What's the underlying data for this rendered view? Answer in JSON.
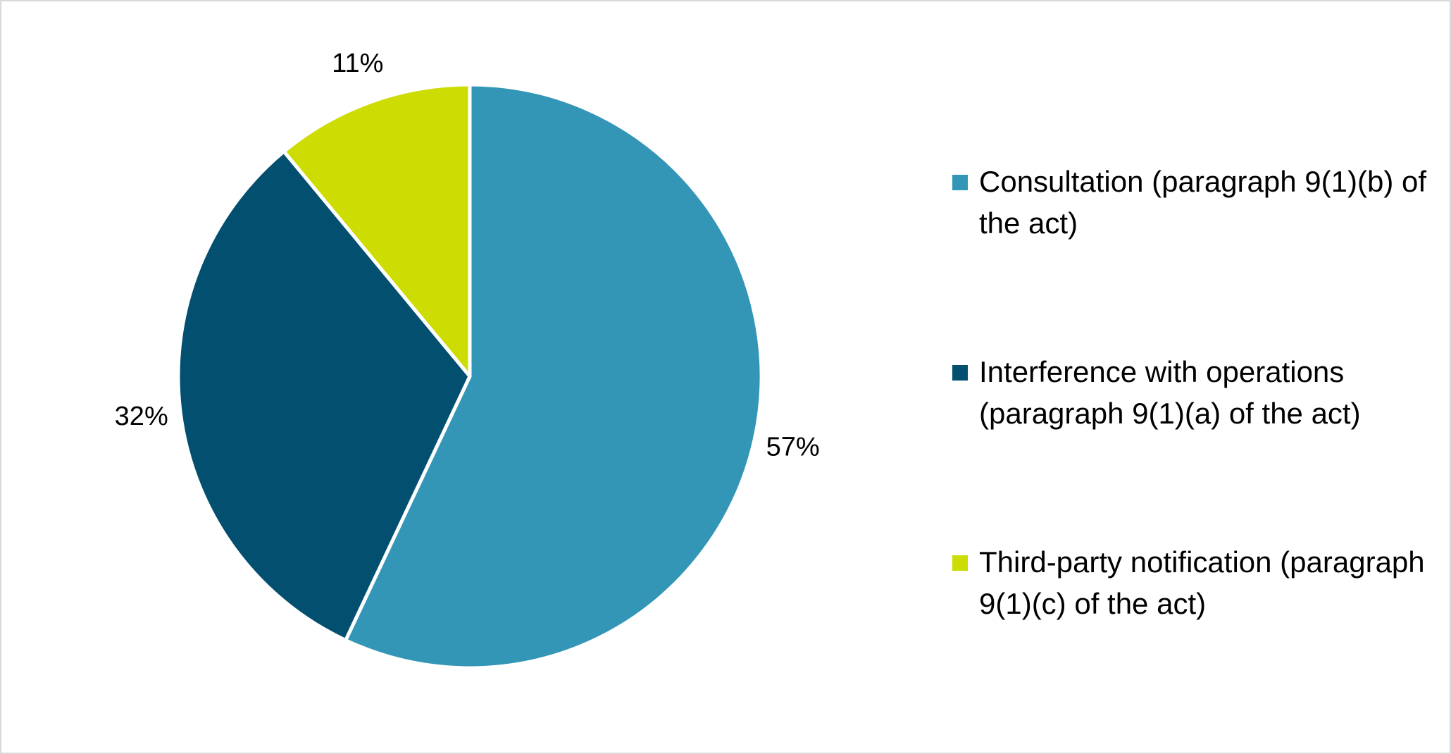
{
  "chart_data": {
    "type": "pie",
    "title": "",
    "slices": [
      {
        "label": "Consultation (paragraph 9(1)(b) of the act)",
        "value": 57,
        "value_label": "57%",
        "color": "#3396b7"
      },
      {
        "label": "Interference with operations (paragraph 9(1)(a) of the act)",
        "value": 32,
        "value_label": "32%",
        "color": "#034f70"
      },
      {
        "label": "Third-party notification (paragraph 9(1)(c) of the act)",
        "value": 11,
        "value_label": "11%",
        "color": "#cddd03"
      }
    ],
    "legend": "right",
    "data_labels": "outside"
  }
}
